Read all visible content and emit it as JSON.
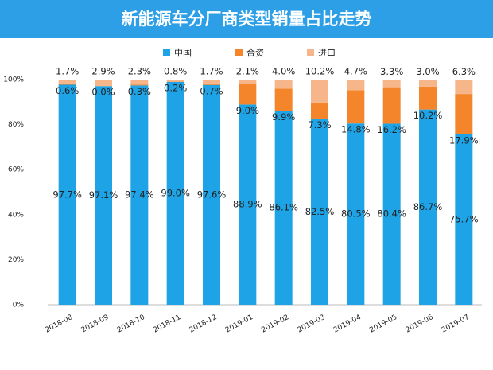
{
  "chart_data": {
    "type": "stacked_bar",
    "title": "新能源车分厂商类型销量占比走势",
    "categories": [
      "2018-08",
      "2018-09",
      "2018-10",
      "2018-11",
      "2018-12",
      "2019-01",
      "2019-02",
      "2019-03",
      "2019-04",
      "2019-05",
      "2019-06",
      "2019-07"
    ],
    "series": [
      {
        "name": "中国",
        "color": "#1ea4e6",
        "values": [
          97.7,
          97.1,
          97.4,
          99.0,
          97.6,
          88.9,
          86.1,
          82.5,
          80.5,
          80.4,
          86.7,
          75.7
        ],
        "value_labels": [
          "97.7%",
          "97.1%",
          "97.4%",
          "99.0%",
          "97.6%",
          "88.9%",
          "86.1%",
          "82.5%",
          "80.5%",
          "80.4%",
          "86.7%",
          "75.7%"
        ]
      },
      {
        "name": "合资",
        "color": "#f4852a",
        "values": [
          0.6,
          0.0,
          0.3,
          0.2,
          0.7,
          9.0,
          9.9,
          7.3,
          14.8,
          16.2,
          10.2,
          17.9
        ],
        "value_labels": [
          "0.6%",
          "0.0%",
          "0.3%",
          "0.2%",
          "0.7%",
          "9.0%",
          "9.9%",
          "7.3%",
          "14.8%",
          "16.2%",
          "10.2%",
          "17.9%"
        ]
      },
      {
        "name": "进口",
        "color": "#f6b68a",
        "values": [
          1.7,
          2.9,
          2.3,
          0.8,
          1.7,
          2.1,
          4.0,
          10.2,
          4.7,
          3.3,
          3.0,
          6.3
        ],
        "value_labels": [
          "1.7%",
          "2.9%",
          "2.3%",
          "0.8%",
          "1.7%",
          "2.1%",
          "4.0%",
          "10.2%",
          "4.7%",
          "3.3%",
          "3.0%",
          "6.3%"
        ]
      }
    ],
    "ylim": [
      0,
      100
    ],
    "yticks": [
      {
        "value": 0,
        "label": "0%"
      },
      {
        "value": 20,
        "label": "20%"
      },
      {
        "value": 40,
        "label": "40%"
      },
      {
        "value": 60,
        "label": "60%"
      },
      {
        "value": 80,
        "label": "80%"
      },
      {
        "value": 100,
        "label": "100%"
      }
    ],
    "grid": false,
    "legend": "top"
  }
}
